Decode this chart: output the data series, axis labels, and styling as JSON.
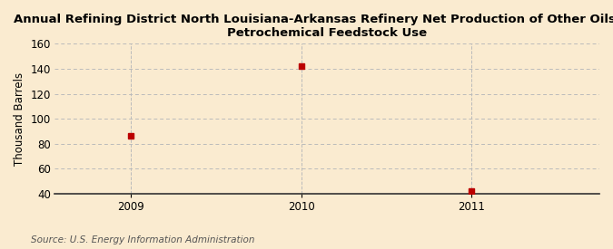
{
  "title": "Annual Refining District North Louisiana-Arkansas Refinery Net Production of Other Oils for\nPetrochemical Feedstock Use",
  "ylabel": "Thousand Barrels",
  "source": "Source: U.S. Energy Information Administration",
  "x": [
    2009,
    2010,
    2011
  ],
  "y": [
    86,
    142,
    42
  ],
  "ylim": [
    40,
    160
  ],
  "yticks": [
    40,
    60,
    80,
    100,
    120,
    140,
    160
  ],
  "xlim": [
    2008.55,
    2011.75
  ],
  "xticks": [
    2009,
    2010,
    2011
  ],
  "marker_color": "#bb0000",
  "marker_size": 4,
  "background_color": "#faebd0",
  "grid_color": "#bbbbbb",
  "title_fontsize": 9.5,
  "axis_label_fontsize": 8.5,
  "tick_fontsize": 8.5,
  "source_fontsize": 7.5
}
